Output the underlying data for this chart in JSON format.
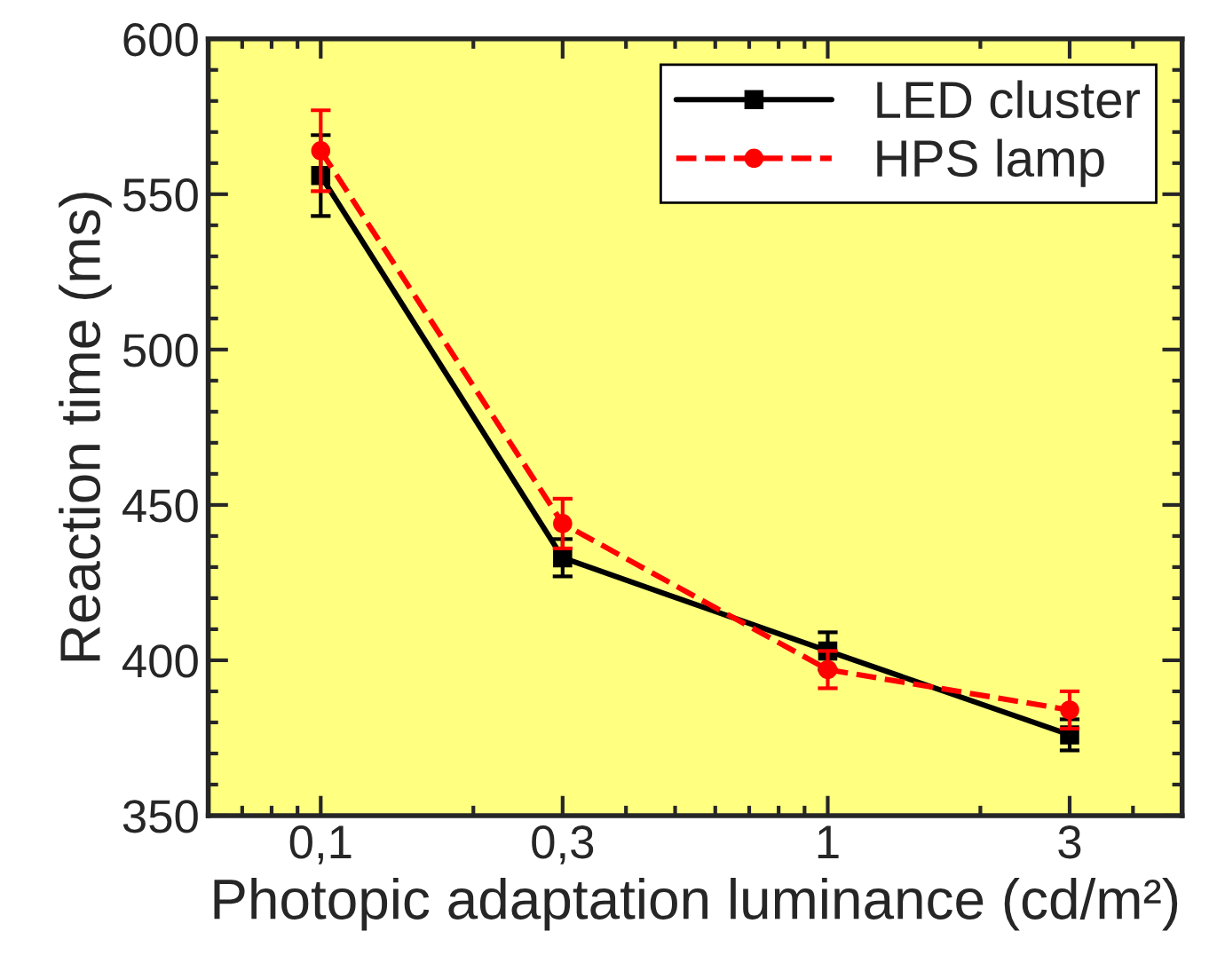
{
  "chart_data": {
    "type": "line",
    "xlabel": "Photopic adaptation luminance (cd/m²)",
    "ylabel": "Reaction time (ms)",
    "x": [
      0.1,
      0.3,
      1,
      3
    ],
    "log": "x",
    "xlim": [
      0.06,
      5
    ],
    "xticks": [
      {
        "value": 0.1,
        "label": "0,1"
      },
      {
        "value": 0.3,
        "label": "0,3"
      },
      1,
      3
    ],
    "ylim": [
      350,
      600
    ],
    "yticks": [
      350,
      400,
      450,
      500,
      550,
      600
    ],
    "grid": false,
    "legend": "top right",
    "series": [
      {
        "name": "LED cluster",
        "color": "#000000",
        "marker": "square",
        "line_style": "solid",
        "values": [
          556,
          433,
          403,
          376
        ],
        "errors": [
          13,
          6,
          6,
          5
        ]
      },
      {
        "name": "HPS lamp",
        "color": "#ff0000",
        "marker": "circle",
        "line_style": "dashed",
        "values": [
          564,
          444,
          397,
          384
        ],
        "errors": [
          13,
          8,
          6,
          6
        ]
      }
    ]
  }
}
